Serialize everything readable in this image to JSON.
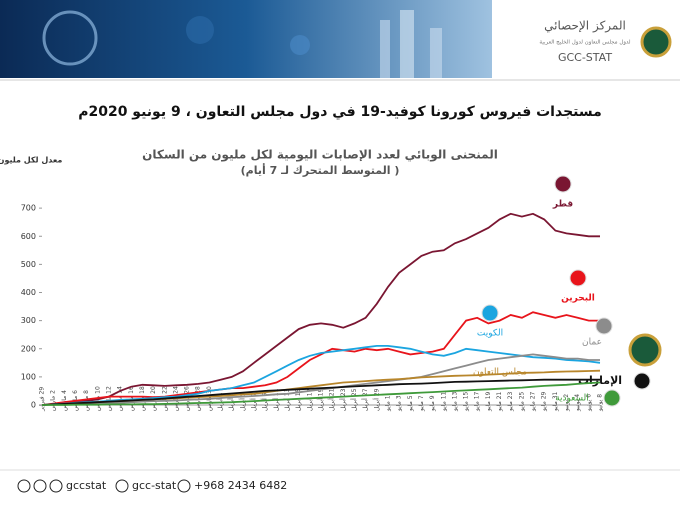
{
  "header": {
    "org_name_ar": "المركز الإحصائي",
    "org_subtitle_ar": "لدول مجلس التعاون لدول الخليج العربية",
    "org_name_en": "GCC-STAT"
  },
  "headline": "مستجدات فيروس كورونا كوفيد-19 في دول مجلس التعاون ، 9 يونيو 2020م",
  "footer": {
    "facebook": "gccstat",
    "snapchat": "gcc-stat",
    "whatsapp": "+968 2434 6482"
  },
  "chart_data": {
    "type": "line",
    "title": "المنحنى الوبائي لعدد الإصابات اليومية لكل مليون من السكان",
    "subtitle": "( المتوسط المتحرك لـ 7 أيام)",
    "y_label": "معدل لكل مليون",
    "categories": [
      "29 فبراير",
      "2 مارس",
      "4 مارس",
      "6 مارس",
      "8 مارس",
      "10 مارس",
      "12 مارس",
      "14 مارس",
      "16 مارس",
      "18 مارس",
      "20 مارس",
      "22 مارس",
      "24 مارس",
      "26 مارس",
      "28 مارس",
      "30 مارس",
      "1 أبريل",
      "3 أبريل",
      "5 أبريل",
      "7 أبريل",
      "9 أبريل",
      "11 أبريل",
      "13 أبريل",
      "15 أبريل",
      "17 أبريل",
      "19 أبريل",
      "21 أبريل",
      "23 أبريل",
      "25 أبريل",
      "27 أبريل",
      "29 أبريل",
      "1 مايو",
      "3 مايو",
      "5 مايو",
      "7 مايو",
      "9 مايو",
      "11 مايو",
      "13 مايو",
      "15 مايو",
      "17 مايو",
      "19 مايو",
      "21 مايو",
      "23 مايو",
      "25 مايو",
      "27 مايو",
      "29 مايو",
      "31 مايو",
      "2 يونيو",
      "4 يونيو",
      "6 يونيو",
      "8 يونيو"
    ],
    "ylim": [
      0,
      800
    ],
    "yticks": [
      0,
      100,
      200,
      300,
      400,
      500,
      600,
      700
    ],
    "series": [
      {
        "name": "قطر",
        "color": "#7a1632",
        "values": [
          0,
          2,
          5,
          10,
          15,
          20,
          30,
          50,
          65,
          72,
          70,
          68,
          70,
          72,
          75,
          80,
          90,
          100,
          120,
          150,
          180,
          210,
          240,
          270,
          285,
          290,
          285,
          275,
          290,
          310,
          360,
          420,
          470,
          500,
          530,
          545,
          550,
          575,
          590,
          610,
          630,
          660,
          680,
          670,
          680,
          660,
          620,
          610,
          605,
          600,
          600
        ]
      },
      {
        "name": "البحرين",
        "color": "#e8141b",
        "values": [
          0,
          5,
          10,
          15,
          20,
          25,
          30,
          30,
          30,
          30,
          28,
          30,
          35,
          40,
          45,
          50,
          55,
          60,
          60,
          65,
          70,
          80,
          100,
          130,
          160,
          180,
          200,
          195,
          190,
          200,
          195,
          200,
          190,
          180,
          185,
          190,
          200,
          250,
          300,
          310,
          290,
          300,
          320,
          310,
          330,
          320,
          310,
          320,
          310,
          300,
          300
        ]
      },
      {
        "name": "الكويت",
        "color": "#1ba5e0",
        "values": [
          0,
          3,
          5,
          8,
          10,
          12,
          15,
          18,
          20,
          22,
          25,
          28,
          30,
          35,
          40,
          50,
          55,
          60,
          70,
          80,
          100,
          120,
          140,
          160,
          175,
          185,
          190,
          195,
          200,
          205,
          210,
          210,
          205,
          200,
          190,
          180,
          175,
          185,
          200,
          195,
          190,
          185,
          180,
          175,
          170,
          168,
          165,
          160,
          158,
          155,
          150
        ]
      },
      {
        "name": "عمان",
        "color": "#8c8c8c",
        "values": [
          0,
          1,
          2,
          3,
          4,
          5,
          6,
          8,
          10,
          12,
          14,
          15,
          16,
          18,
          20,
          22,
          25,
          28,
          30,
          32,
          35,
          38,
          40,
          45,
          50,
          55,
          60,
          65,
          70,
          75,
          80,
          85,
          90,
          95,
          100,
          110,
          120,
          130,
          140,
          150,
          160,
          165,
          170,
          175,
          180,
          175,
          170,
          165,
          165,
          160,
          160
        ]
      },
      {
        "name": "مجلس التعاون",
        "color": "#b8862b",
        "values": [
          0,
          2,
          4,
          6,
          8,
          10,
          12,
          14,
          16,
          18,
          20,
          22,
          24,
          26,
          28,
          30,
          32,
          35,
          38,
          40,
          45,
          50,
          55,
          60,
          65,
          70,
          75,
          80,
          82,
          85,
          88,
          90,
          92,
          95,
          98,
          100,
          102,
          104,
          105,
          106,
          108,
          110,
          112,
          114,
          115,
          116,
          118,
          119,
          120,
          121,
          122
        ]
      },
      {
        "name": "الإمارات",
        "color": "#111111",
        "values": [
          0,
          2,
          4,
          6,
          8,
          10,
          12,
          14,
          16,
          18,
          20,
          23,
          26,
          29,
          32,
          35,
          38,
          41,
          44,
          47,
          50,
          52,
          54,
          56,
          58,
          60,
          62,
          64,
          66,
          68,
          70,
          72,
          74,
          75,
          76,
          78,
          80,
          82,
          83,
          84,
          85,
          86,
          87,
          88,
          89,
          90,
          90,
          90,
          90,
          90,
          90
        ]
      },
      {
        "name": "السعودية",
        "color": "#3f9a3a",
        "values": [
          0,
          0,
          0,
          1,
          1,
          1,
          2,
          2,
          2,
          3,
          3,
          4,
          5,
          6,
          7,
          8,
          9,
          10,
          12,
          14,
          16,
          18,
          20,
          22,
          24,
          26,
          28,
          30,
          32,
          34,
          36,
          38,
          40,
          42,
          44,
          46,
          48,
          50,
          52,
          54,
          56,
          58,
          60,
          62,
          65,
          68,
          70,
          72,
          75,
          78,
          80
        ]
      }
    ]
  }
}
